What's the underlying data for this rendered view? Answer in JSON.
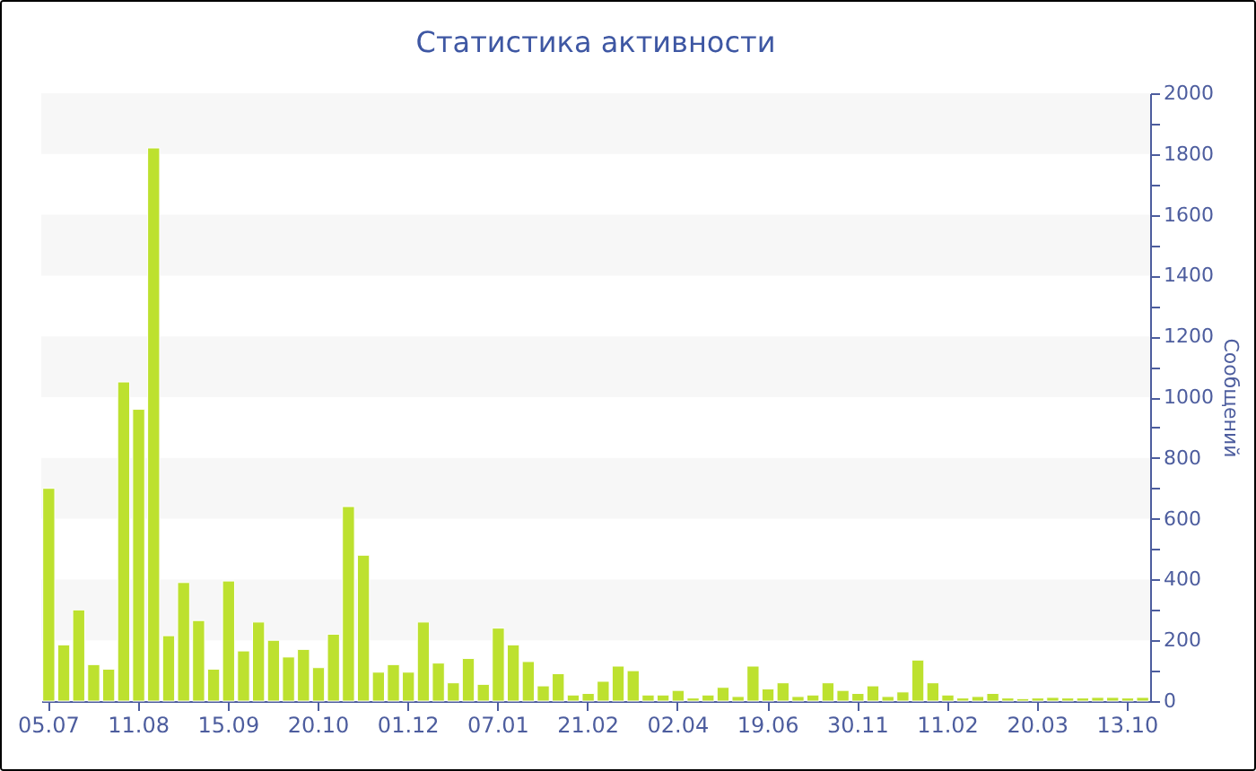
{
  "chart_data": {
    "type": "bar",
    "title": "Статистика активности",
    "ylabel": "Сообщений",
    "categories": [
      "05.07",
      null,
      null,
      null,
      null,
      null,
      "11.08",
      null,
      null,
      null,
      null,
      null,
      "15.09",
      null,
      null,
      null,
      null,
      null,
      "20.10",
      null,
      null,
      null,
      null,
      null,
      "01.12",
      null,
      null,
      null,
      null,
      null,
      "07.01",
      null,
      null,
      null,
      null,
      null,
      "21.02",
      null,
      null,
      null,
      null,
      null,
      "02.04",
      null,
      null,
      null,
      null,
      null,
      "19.06",
      null,
      null,
      null,
      null,
      null,
      "30.11",
      null,
      null,
      null,
      null,
      null,
      "11.02",
      null,
      null,
      null,
      null,
      null,
      "20.03",
      null,
      null,
      null,
      null,
      null,
      "13.10",
      null
    ],
    "values": [
      700,
      185,
      300,
      120,
      105,
      1050,
      960,
      1820,
      215,
      390,
      265,
      105,
      395,
      165,
      260,
      200,
      145,
      170,
      110,
      220,
      640,
      480,
      95,
      120,
      95,
      260,
      125,
      60,
      140,
      55,
      240,
      185,
      130,
      50,
      90,
      20,
      25,
      65,
      115,
      100,
      20,
      20,
      35,
      10,
      20,
      45,
      15,
      115,
      40,
      60,
      15,
      20,
      60,
      35,
      25,
      50,
      15,
      30,
      135,
      60,
      20,
      10,
      15,
      25,
      10,
      8,
      10,
      12,
      10,
      10,
      12,
      12,
      10,
      12
    ],
    "color": "#bde12f",
    "ylim": [
      0,
      2000
    ],
    "yticks": [
      0,
      {
        "value": 100,
        "label": null
      },
      200,
      {
        "value": 300,
        "label": null
      },
      400,
      {
        "value": 500,
        "label": null
      },
      600,
      {
        "value": 700,
        "label": null
      },
      800,
      {
        "value": 900,
        "label": null
      },
      1000,
      {
        "value": 1100,
        "label": null
      },
      1200,
      {
        "value": 1300,
        "label": null
      },
      1400,
      {
        "value": 1500,
        "label": null
      },
      1600,
      {
        "value": 1700,
        "label": null
      },
      1800,
      {
        "value": 1900,
        "label": null
      },
      2000
    ],
    "bands": [
      {
        "axis": "y",
        "from": 200,
        "to": 400,
        "color": "#f7f7f7"
      },
      {
        "axis": "y",
        "from": 600,
        "to": 800,
        "color": "#f7f7f7"
      },
      {
        "axis": "y",
        "from": 1000,
        "to": 1200,
        "color": "#f7f7f7"
      },
      {
        "axis": "y",
        "from": 1400,
        "to": 1600,
        "color": "#f7f7f7"
      },
      {
        "axis": "y",
        "from": 1800,
        "to": 2000,
        "color": "#f7f7f7"
      }
    ]
  }
}
